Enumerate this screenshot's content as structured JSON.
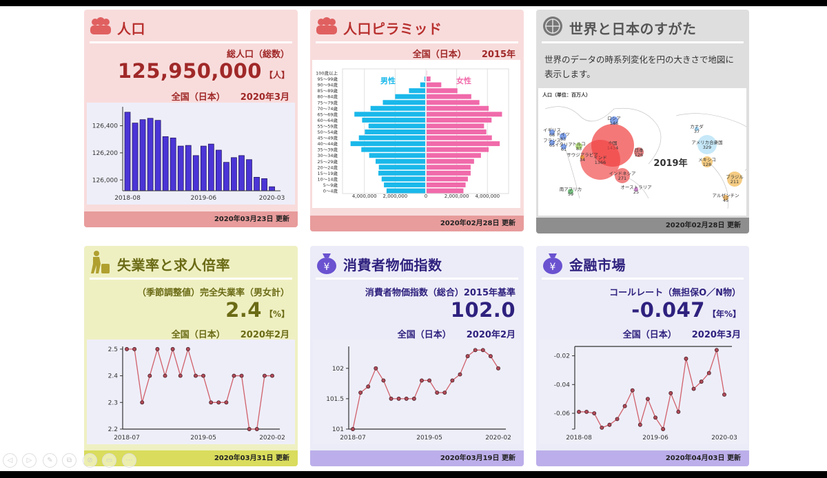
{
  "colors": {
    "red_bg": "#f8dcdc",
    "red_title": "#b8312f",
    "red_num": "#a02828",
    "red_foot": "#e89c9c",
    "gray_bg": "#dedede",
    "gray_title": "#555555",
    "gray_foot": "#8e8e8e",
    "yellow_bg": "#eff0c2",
    "yellow_title": "#6b6b16",
    "yellow_foot": "#d9dc5c",
    "purple_bg": "#ececf8",
    "purple_title": "#2e217e",
    "purple_foot": "#bcaeea",
    "bar_fill": "#4b35d6",
    "line": "#d0606a",
    "male": "#1ab8ea",
    "female": "#f06aaa"
  },
  "cards": {
    "population": {
      "icon": "people-icon",
      "title": "人口",
      "label": "総人口（総数）",
      "value": "125,950,000",
      "unit": "【人】",
      "region": "全国（日本）",
      "period": "2020年3月",
      "updated": "2020年03月23日 更新"
    },
    "pyramid": {
      "icon": "people-icon",
      "title": "人口ピラミッド",
      "region": "全国（日本）",
      "period": "2015年",
      "updated": "2020年02月28日 更新"
    },
    "world": {
      "icon": "globe-icon",
      "title": "世界と日本のすがた",
      "description": "世界のデータの時系列変化を円の大きさで地図に表示します。",
      "updated": "2020年02月28日 更新"
    },
    "unemployment": {
      "icon": "worker-icon",
      "title": "失業率と求人倍率",
      "label": "（季節調整値）完全失業率（男女計）",
      "value": "2.4",
      "unit": "【%】",
      "region": "全国（日本）",
      "period": "2020年2月",
      "updated": "2020年03月31日 更新"
    },
    "cpi": {
      "icon": "yen-purse-icon",
      "title": "消費者物価指数",
      "label": "消費者物価指数（総合）2015年基準",
      "value": "102.0",
      "region": "全国（日本）",
      "period": "2020年2月",
      "updated": "2020年03月19日 更新"
    },
    "finance": {
      "icon": "yen-purse-icon",
      "title": "金融市場",
      "label": "コールレート（無担保O／N物）",
      "value": "-0.047",
      "unit": "【年%】",
      "region": "全国（日本）",
      "period": "2020年3月",
      "updated": "2020年04月03日 更新"
    }
  },
  "map": {
    "caption": "人口（単位：百万人）",
    "year": "2019年",
    "countries": [
      {
        "name": "中国",
        "value": "1434",
        "color": "#f03030"
      },
      {
        "name": "インド",
        "value": "1366",
        "color": "#f04040"
      },
      {
        "name": "ロシア",
        "value": "146",
        "color": "#3a6ee0"
      },
      {
        "name": "日本",
        "value": "126",
        "color": "#d03a3a"
      },
      {
        "name": "インドネシア",
        "value": "271",
        "color": "#e84040"
      },
      {
        "name": "オーストラリア",
        "value": "25",
        "color": "#b040b0"
      },
      {
        "name": "南アフリカ",
        "value": "59",
        "color": "#30a040"
      },
      {
        "name": "イギリス",
        "value": "68",
        "color": "#3a6ee0"
      },
      {
        "name": "ドイツ",
        "value": "83",
        "color": "#3a6ee0"
      },
      {
        "name": "フランス",
        "value": "65",
        "color": "#3a6ee0"
      },
      {
        "name": "イタリア",
        "value": "61",
        "color": "#3a6ee0"
      },
      {
        "name": "トルコ",
        "value": "83",
        "color": "#8cc83c"
      },
      {
        "name": "サウジアラビア",
        "value": "34",
        "color": "#e0a020"
      },
      {
        "name": "カナダ",
        "value": "37",
        "color": "#60b0e0"
      },
      {
        "name": "アメリカ合衆国",
        "value": "329",
        "color": "#a8dcf4"
      },
      {
        "name": "メキシコ",
        "value": "128",
        "color": "#f0b040"
      },
      {
        "name": "ブラジル",
        "value": "211",
        "color": "#f0b040"
      },
      {
        "name": "アルゼンチン",
        "value": "45",
        "color": "#e09020"
      }
    ]
  },
  "nav": [
    "back-icon",
    "forward-icon",
    "pen-icon",
    "slides-icon",
    "no-edit-icon",
    "screen-icon",
    "more-icon"
  ],
  "chart_data": [
    {
      "id": "population",
      "type": "bar",
      "categories": [
        "2018-08",
        "2018-09",
        "2018-10",
        "2018-11",
        "2018-12",
        "2019-01",
        "2019-02",
        "2019-03",
        "2019-04",
        "2019-05",
        "2019-06",
        "2019-07",
        "2019-08",
        "2019-09",
        "2019-10",
        "2019-11",
        "2019-12",
        "2020-01",
        "2020-02",
        "2020-03"
      ],
      "values": [
        126500,
        126420,
        126445,
        126455,
        126440,
        126320,
        126310,
        126250,
        126255,
        126180,
        126250,
        126265,
        126220,
        126130,
        126165,
        126180,
        126150,
        126020,
        126010,
        125950
      ],
      "xticks": [
        "2018-08",
        "2019-06",
        "2020-03"
      ],
      "yticks": [
        126000,
        126200,
        126400
      ],
      "ytick_labels": [
        "126,000",
        "126,200",
        "126,400"
      ],
      "ylim": [
        125920,
        126540
      ]
    },
    {
      "id": "pyramid",
      "type": "bar",
      "orientation": "horizontal",
      "categories": [
        "100歳以上",
        "95～99歳",
        "90～94歳",
        "85～89歳",
        "80～84歳",
        "75～79歳",
        "70～74歳",
        "65～69歳",
        "60～64歳",
        "55～59歳",
        "50～54歳",
        "45～49歳",
        "40～44歳",
        "35～39歳",
        "30～34歳",
        "25～29歳",
        "20～24歳",
        "15～19歳",
        "10～14歳",
        "5～9歳",
        "0～4歳"
      ],
      "series": [
        {
          "name": "男性",
          "values": [
            10000,
            90000,
            370000,
            1100000,
            2000000,
            2800000,
            3600000,
            4650000,
            4150000,
            3730000,
            3970000,
            4360000,
            4900000,
            4200000,
            3690000,
            3270000,
            3060000,
            3090000,
            2880000,
            2730000,
            2560000
          ]
        },
        {
          "name": "女性",
          "values": [
            60000,
            300000,
            1000000,
            2050000,
            2950000,
            3480000,
            4080000,
            4950000,
            4270000,
            3780000,
            3930000,
            4290000,
            4800000,
            4080000,
            3580000,
            3130000,
            2910000,
            2910000,
            2730000,
            2580000,
            2440000
          ]
        }
      ],
      "xticks": [
        -4000000,
        -2000000,
        0,
        2000000,
        4000000
      ],
      "xtick_labels": [
        "4,000,000",
        "2,000,000",
        "0",
        "2,000,000",
        "4,000,000"
      ],
      "xlim": [
        -5400000,
        5400000
      ],
      "grid": true
    },
    {
      "id": "unemployment",
      "type": "line",
      "categories": [
        "2018-07",
        "2018-08",
        "2018-09",
        "2018-10",
        "2018-11",
        "2018-12",
        "2019-01",
        "2019-02",
        "2019-03",
        "2019-04",
        "2019-05",
        "2019-06",
        "2019-07",
        "2019-08",
        "2019-09",
        "2019-10",
        "2019-11",
        "2019-12",
        "2020-01",
        "2020-02"
      ],
      "values": [
        2.5,
        2.5,
        2.3,
        2.4,
        2.5,
        2.4,
        2.5,
        2.4,
        2.5,
        2.4,
        2.4,
        2.3,
        2.3,
        2.3,
        2.4,
        2.4,
        2.2,
        2.2,
        2.4,
        2.4
      ],
      "xticks": [
        "2018-07",
        "2019-05",
        "2020-02"
      ],
      "yticks": [
        2.2,
        2.3,
        2.4,
        2.5
      ],
      "ytick_labels": [
        "2.2",
        "2.3",
        "2.4",
        "2.5"
      ],
      "ylim": [
        2.2,
        2.51
      ]
    },
    {
      "id": "cpi",
      "type": "line",
      "categories": [
        "2018-07",
        "2018-08",
        "2018-09",
        "2018-10",
        "2018-11",
        "2018-12",
        "2019-01",
        "2019-02",
        "2019-03",
        "2019-04",
        "2019-05",
        "2019-06",
        "2019-07",
        "2019-08",
        "2019-09",
        "2019-10",
        "2019-11",
        "2019-12",
        "2020-01",
        "2020-02"
      ],
      "values": [
        101.0,
        101.6,
        101.7,
        102.0,
        101.8,
        101.5,
        101.5,
        101.5,
        101.5,
        101.8,
        101.8,
        101.6,
        101.6,
        101.8,
        101.9,
        102.2,
        102.3,
        102.3,
        102.2,
        102.0
      ],
      "xticks": [
        "2018-07",
        "2019-05",
        "2020-02"
      ],
      "yticks": [
        101,
        101.5,
        102
      ],
      "ytick_labels": [
        "101",
        "101.5",
        "102"
      ],
      "ylim": [
        101,
        102.36
      ]
    },
    {
      "id": "finance",
      "type": "line",
      "categories": [
        "2018-08",
        "2018-09",
        "2018-10",
        "2018-11",
        "2018-12",
        "2019-01",
        "2019-02",
        "2019-03",
        "2019-04",
        "2019-05",
        "2019-06",
        "2019-07",
        "2019-08",
        "2019-09",
        "2019-10",
        "2019-11",
        "2019-12",
        "2020-01",
        "2020-02",
        "2020-03"
      ],
      "values": [
        -0.059,
        -0.059,
        -0.06,
        -0.07,
        -0.068,
        -0.064,
        -0.055,
        -0.044,
        -0.068,
        -0.05,
        -0.063,
        -0.071,
        -0.046,
        -0.059,
        -0.022,
        -0.043,
        -0.038,
        -0.032,
        -0.016,
        -0.047
      ],
      "xticks": [
        "2018-08",
        "2019-06",
        "2020-03"
      ],
      "yticks": [
        -0.06,
        -0.04,
        -0.02
      ],
      "ytick_labels": [
        "-0.06",
        "-0.04",
        "-0.02"
      ],
      "ylim": [
        -0.071,
        -0.0135
      ],
      "axis_line": "top"
    }
  ]
}
